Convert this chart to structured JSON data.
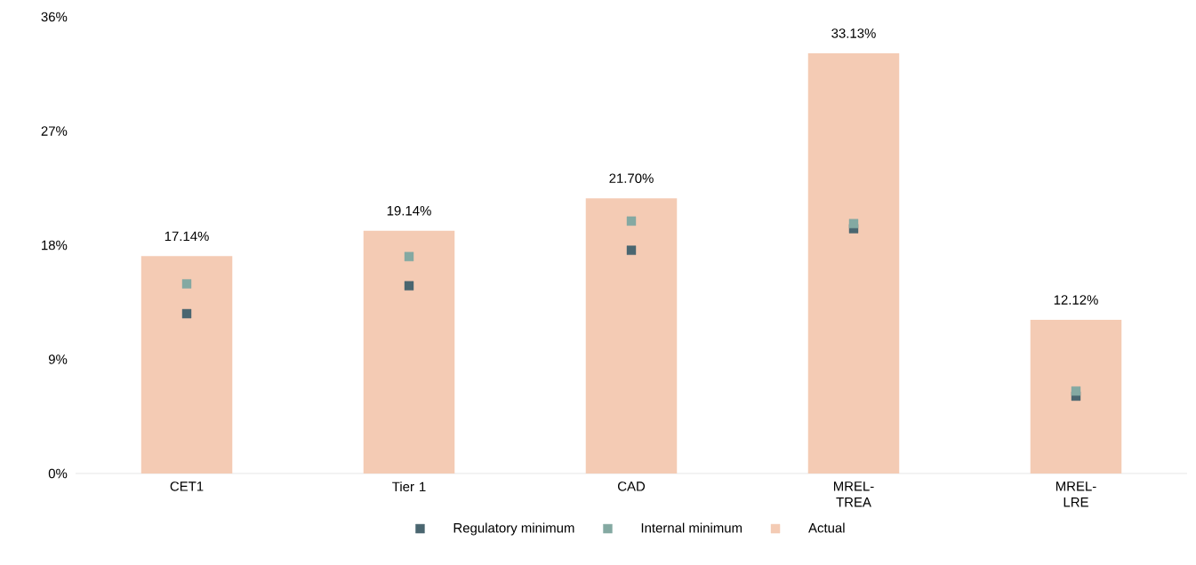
{
  "chart_data": {
    "type": "bar",
    "categories": [
      "CET1",
      "Tier 1",
      "CAD",
      "MREL-TREA",
      "MREL-LRE"
    ],
    "series": [
      {
        "name": "Regulatory minimum",
        "type": "scatter",
        "color": "#4a6670",
        "x": [
          "CET1",
          "Tier 1",
          "CAD",
          "MREL-TREA",
          "MREL-LRE"
        ],
        "values": [
          12.6,
          14.8,
          17.6,
          19.3,
          6.1
        ]
      },
      {
        "name": "Internal minimum",
        "type": "scatter",
        "color": "#84a9a2",
        "x": [
          "CET1",
          "Tier 1",
          "CAD",
          "MREL-TREA",
          "MREL-LRE"
        ],
        "values": [
          14.95,
          17.1,
          19.9,
          19.7,
          6.5
        ]
      },
      {
        "name": "Actual",
        "color": "#f4cbb4",
        "values": [
          17.14,
          19.14,
          21.7,
          33.13,
          12.12
        ],
        "value_labels": [
          "17.14%",
          "19.14%",
          "21.70%",
          "33.13%",
          "12.12%"
        ]
      }
    ],
    "ylim": [
      0,
      36
    ],
    "yticks": [
      {
        "value": 0,
        "label": "0%"
      },
      {
        "value": 9,
        "label": "9%"
      },
      {
        "value": 18,
        "label": "18%"
      },
      {
        "value": 27,
        "label": "27%"
      },
      {
        "value": 36,
        "label": "36%"
      }
    ],
    "grid": false,
    "legend": "bottom",
    "marker": "square"
  }
}
